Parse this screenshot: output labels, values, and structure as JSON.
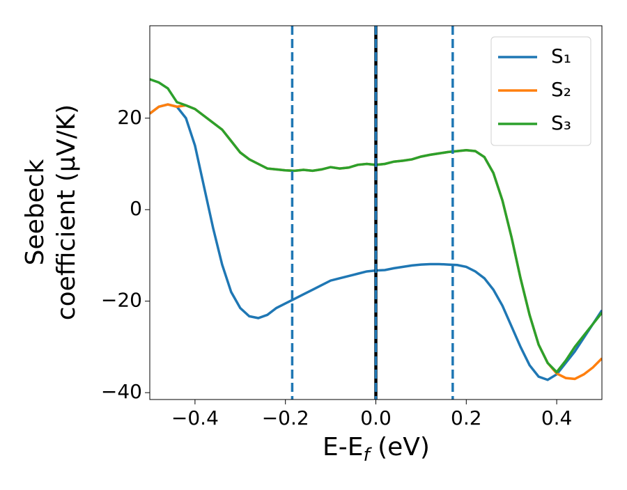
{
  "chart_data": {
    "type": "line",
    "xlabel": [
      "E-E",
      "f",
      " (eV)"
    ],
    "ylabel": [
      "Seebeck",
      "coefficient  (μV/K)"
    ],
    "x": [
      -0.5,
      -0.48,
      -0.46,
      -0.44,
      -0.42,
      -0.4,
      -0.38,
      -0.36,
      -0.34,
      -0.32,
      -0.3,
      -0.28,
      -0.26,
      -0.24,
      -0.22,
      -0.2,
      -0.18,
      -0.16,
      -0.14,
      -0.12,
      -0.1,
      -0.08,
      -0.06,
      -0.04,
      -0.02,
      0,
      0.02,
      0.04,
      0.06,
      0.08,
      0.1,
      0.12,
      0.14,
      0.16,
      0.18,
      0.2,
      0.22,
      0.24,
      0.26,
      0.28,
      0.3,
      0.32,
      0.34,
      0.36,
      0.38,
      0.4,
      0.42,
      0.44,
      0.46,
      0.48,
      0.5
    ],
    "series": [
      {
        "name": "S₁",
        "color": "#1f77b4",
        "values": [
          21,
          22.5,
          23,
          22.5,
          20,
          14,
          5,
          -4,
          -12,
          -18,
          -21.5,
          -23.3,
          -23.7,
          -23,
          -21.5,
          -20.5,
          -19.5,
          -18.5,
          -17.5,
          -16.5,
          -15.5,
          -15,
          -14.5,
          -14,
          -13.5,
          -13.3,
          -13.2,
          -12.8,
          -12.5,
          -12.2,
          -12,
          -11.9,
          -11.9,
          -12,
          -12.1,
          -12.5,
          -13.5,
          -15,
          -17.5,
          -21,
          -25.5,
          -30,
          -34,
          -36.5,
          -37.2,
          -36,
          -33.5,
          -31,
          -28,
          -25,
          -22
        ]
      },
      {
        "name": "S₂",
        "color": "#ff7f0e",
        "values": [
          21,
          22.5,
          23,
          22.5,
          22.8,
          22,
          20.5,
          19,
          17.5,
          15,
          12.5,
          11,
          10,
          9,
          8.8,
          8.6,
          8.5,
          8.7,
          8.5,
          8.8,
          9.3,
          9,
          9.2,
          9.8,
          10,
          9.8,
          10,
          10.5,
          10.7,
          11,
          11.6,
          12,
          12.3,
          12.6,
          12.8,
          13,
          12.8,
          11.5,
          8,
          2,
          -6,
          -15,
          -23,
          -29.5,
          -33.5,
          -35.8,
          -36.8,
          -37,
          -36,
          -34.5,
          -32.5
        ]
      },
      {
        "name": "S₃",
        "color": "#2ca02c",
        "values": [
          28.5,
          27.8,
          26.5,
          23.5,
          22.8,
          22,
          20.5,
          19,
          17.5,
          15,
          12.5,
          11,
          10,
          9,
          8.8,
          8.6,
          8.5,
          8.7,
          8.5,
          8.8,
          9.3,
          9,
          9.2,
          9.8,
          10,
          9.8,
          10,
          10.5,
          10.7,
          11,
          11.6,
          12,
          12.3,
          12.6,
          12.8,
          13,
          12.8,
          11.5,
          8,
          2,
          -6,
          -15,
          -23,
          -29.5,
          -33.5,
          -35.5,
          -33,
          -30,
          -27.5,
          -25,
          -22.5
        ]
      }
    ],
    "vlines": [
      {
        "x": 0,
        "color": "#000000",
        "style": "solid"
      },
      {
        "x": -0.185,
        "color": "#1f77b4",
        "style": "dashed"
      },
      {
        "x": 0,
        "color": "#1f77b4",
        "style": "dashed"
      },
      {
        "x": 0.17,
        "color": "#1f77b4",
        "style": "dashed"
      }
    ],
    "xlim": [
      -0.5,
      0.5
    ],
    "ylim": [
      -41.5,
      40.2
    ],
    "xticks": [
      {
        "value": -0.4,
        "label": "−0.4"
      },
      {
        "value": -0.2,
        "label": "−0.2"
      },
      {
        "value": 0,
        "label": "0.0"
      },
      {
        "value": 0.2,
        "label": "0.2"
      },
      {
        "value": 0.4,
        "label": "0.4"
      }
    ],
    "yticks": [
      {
        "value": -40,
        "label": "−40"
      },
      {
        "value": -20,
        "label": "−20"
      },
      0,
      20
    ],
    "legend": "upper right"
  }
}
